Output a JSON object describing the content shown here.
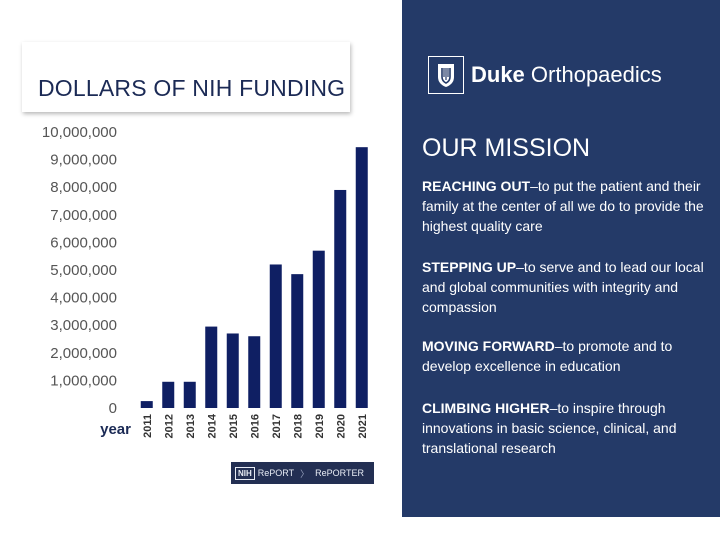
{
  "title": "DOLLARS OF NIH FUNDING",
  "chart_data": {
    "type": "bar",
    "title": "DOLLARS OF NIH FUNDING",
    "xlabel": "year",
    "ylabel": "",
    "categories": [
      "2011",
      "2012",
      "2013",
      "2014",
      "2015",
      "2016",
      "2017",
      "2018",
      "2019",
      "2020",
      "2021"
    ],
    "values": [
      250000,
      950000,
      950000,
      2950000,
      2700000,
      2600000,
      5200000,
      4850000,
      5700000,
      7900000,
      9450000
    ],
    "yticks": [
      "0",
      "1,000,000",
      "2,000,000",
      "3,000,000",
      "4,000,000",
      "5,000,000",
      "6,000,000",
      "7,000,000",
      "8,000,000",
      "9,000,000",
      "10,000,000"
    ],
    "ylim": [
      0,
      10000000
    ],
    "grid": false,
    "legend": "none",
    "bar_color": "#0f1f63"
  },
  "source_badge": {
    "nih": "NIH",
    "report": "RePORT",
    "separator": "〉",
    "reporter": "RePORTER"
  },
  "logo": {
    "duke": "Duke",
    "orthopaedics": "Orthopaedics",
    "icon": "duke-shield-icon"
  },
  "mission": {
    "title": "OUR MISSION",
    "items": [
      {
        "bold": "REACHING OUT",
        "text": "–to put the patient and their family at the center of all we do to provide the highest quality care"
      },
      {
        "bold": "STEPPING UP",
        "text": "–to serve and to lead our local and global communities with integrity and compassion"
      },
      {
        "bold": "MOVING FORWARD",
        "text": "–to promote and to develop excellence in education"
      },
      {
        "bold": "CLIMBING HIGHER",
        "text": "–to inspire through innovations in basic science, clinical, and translational research"
      }
    ]
  },
  "colors": {
    "panel": "#243a68",
    "title_text": "#1b2a55",
    "bar": "#0f1f63"
  }
}
